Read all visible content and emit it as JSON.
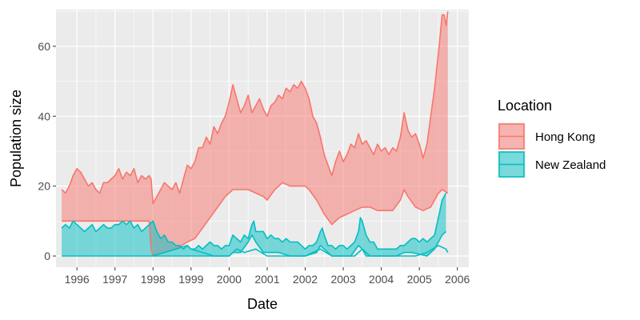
{
  "chart_data": {
    "type": "area",
    "xlabel": "Date",
    "ylabel": "Population size",
    "x_ticks": [
      "1996",
      "1997",
      "1998",
      "1999",
      "2000",
      "2001",
      "2002",
      "2003",
      "2004",
      "2005",
      "2006"
    ],
    "y_ticks": [
      0,
      20,
      40,
      60
    ],
    "xlim": [
      1995.45,
      2006.3
    ],
    "ylim": [
      -3.2,
      70.5
    ],
    "grid": true,
    "legend": {
      "title": "Location",
      "position": "right"
    },
    "series": [
      {
        "name": "Hong Kong",
        "color": "#F8766D",
        "fill": "rgba(248,118,109,0.5)",
        "upper": [
          [
            1995.6,
            19
          ],
          [
            1995.7,
            18
          ],
          [
            1995.8,
            20
          ],
          [
            1995.9,
            23
          ],
          [
            1996.0,
            25
          ],
          [
            1996.1,
            24
          ],
          [
            1996.2,
            22
          ],
          [
            1996.3,
            20
          ],
          [
            1996.4,
            21
          ],
          [
            1996.5,
            19
          ],
          [
            1996.6,
            18
          ],
          [
            1996.7,
            21
          ],
          [
            1996.8,
            21
          ],
          [
            1996.9,
            22
          ],
          [
            1997.0,
            23
          ],
          [
            1997.1,
            25
          ],
          [
            1997.2,
            22
          ],
          [
            1997.3,
            24
          ],
          [
            1997.4,
            23
          ],
          [
            1997.5,
            25
          ],
          [
            1997.6,
            21
          ],
          [
            1997.7,
            23
          ],
          [
            1997.8,
            22
          ],
          [
            1997.9,
            23
          ],
          [
            1997.95,
            22
          ],
          [
            1998.0,
            15
          ],
          [
            1998.1,
            17
          ],
          [
            1998.2,
            19
          ],
          [
            1998.3,
            21
          ],
          [
            1998.4,
            20
          ],
          [
            1998.5,
            19
          ],
          [
            1998.6,
            21
          ],
          [
            1998.7,
            18
          ],
          [
            1998.8,
            22
          ],
          [
            1998.9,
            26
          ],
          [
            1999.0,
            25
          ],
          [
            1999.1,
            27
          ],
          [
            1999.2,
            31
          ],
          [
            1999.3,
            31
          ],
          [
            1999.4,
            34
          ],
          [
            1999.5,
            32
          ],
          [
            1999.6,
            37
          ],
          [
            1999.7,
            35
          ],
          [
            1999.8,
            38
          ],
          [
            1999.9,
            40
          ],
          [
            2000.0,
            44
          ],
          [
            2000.1,
            49
          ],
          [
            2000.2,
            45
          ],
          [
            2000.3,
            41
          ],
          [
            2000.4,
            43
          ],
          [
            2000.5,
            46
          ],
          [
            2000.6,
            41
          ],
          [
            2000.7,
            43
          ],
          [
            2000.8,
            45
          ],
          [
            2000.9,
            42
          ],
          [
            2001.0,
            40
          ],
          [
            2001.1,
            43
          ],
          [
            2001.2,
            44
          ],
          [
            2001.3,
            46
          ],
          [
            2001.4,
            45
          ],
          [
            2001.5,
            48
          ],
          [
            2001.6,
            47
          ],
          [
            2001.7,
            49
          ],
          [
            2001.8,
            48
          ],
          [
            2001.9,
            50
          ],
          [
            2002.0,
            48
          ],
          [
            2002.1,
            45
          ],
          [
            2002.2,
            40
          ],
          [
            2002.3,
            38
          ],
          [
            2002.4,
            34
          ],
          [
            2002.5,
            29
          ],
          [
            2002.6,
            26
          ],
          [
            2002.7,
            23
          ],
          [
            2002.8,
            27
          ],
          [
            2002.9,
            30
          ],
          [
            2003.0,
            27
          ],
          [
            2003.1,
            29
          ],
          [
            2003.2,
            32
          ],
          [
            2003.3,
            31
          ],
          [
            2003.4,
            35
          ],
          [
            2003.5,
            32
          ],
          [
            2003.6,
            33
          ],
          [
            2003.7,
            31
          ],
          [
            2003.8,
            29
          ],
          [
            2003.9,
            32
          ],
          [
            2004.0,
            30
          ],
          [
            2004.1,
            31
          ],
          [
            2004.2,
            29
          ],
          [
            2004.3,
            31
          ],
          [
            2004.4,
            30
          ],
          [
            2004.5,
            34
          ],
          [
            2004.6,
            41
          ],
          [
            2004.7,
            36
          ],
          [
            2004.8,
            34
          ],
          [
            2004.9,
            35
          ],
          [
            2005.0,
            32
          ],
          [
            2005.1,
            28
          ],
          [
            2005.2,
            32
          ],
          [
            2005.3,
            40
          ],
          [
            2005.4,
            48
          ],
          [
            2005.5,
            58
          ],
          [
            2005.6,
            69
          ],
          [
            2005.65,
            69
          ],
          [
            2005.7,
            66
          ],
          [
            2005.75,
            70
          ]
        ],
        "lower": [
          [
            1995.6,
            10
          ],
          [
            1996.0,
            10
          ],
          [
            1997.0,
            10
          ],
          [
            1997.9,
            10
          ],
          [
            1997.95,
            2
          ],
          [
            1998.0,
            0
          ],
          [
            1998.3,
            1
          ],
          [
            1998.6,
            2
          ],
          [
            1998.9,
            4
          ],
          [
            1999.1,
            5
          ],
          [
            1999.3,
            8
          ],
          [
            1999.5,
            11
          ],
          [
            1999.7,
            14
          ],
          [
            1999.9,
            17
          ],
          [
            2000.1,
            19
          ],
          [
            2000.3,
            19
          ],
          [
            2000.5,
            19
          ],
          [
            2000.7,
            18
          ],
          [
            2000.9,
            17
          ],
          [
            2001.0,
            16
          ],
          [
            2001.2,
            19
          ],
          [
            2001.4,
            21
          ],
          [
            2001.6,
            20
          ],
          [
            2001.8,
            20
          ],
          [
            2002.0,
            20
          ],
          [
            2002.1,
            19
          ],
          [
            2002.3,
            16
          ],
          [
            2002.5,
            12
          ],
          [
            2002.7,
            9
          ],
          [
            2002.9,
            11
          ],
          [
            2003.1,
            12
          ],
          [
            2003.3,
            13
          ],
          [
            2003.5,
            14
          ],
          [
            2003.7,
            14
          ],
          [
            2003.9,
            13
          ],
          [
            2004.1,
            13
          ],
          [
            2004.3,
            13
          ],
          [
            2004.5,
            16
          ],
          [
            2004.6,
            19
          ],
          [
            2004.7,
            17
          ],
          [
            2004.9,
            14
          ],
          [
            2005.1,
            13
          ],
          [
            2005.3,
            14
          ],
          [
            2005.5,
            18
          ],
          [
            2005.6,
            19
          ],
          [
            2005.75,
            18
          ]
        ]
      },
      {
        "name": "New Zealand",
        "color": "#00BFC4",
        "fill": "rgba(0,191,196,0.5)",
        "upper": [
          [
            1995.6,
            8
          ],
          [
            1995.7,
            9
          ],
          [
            1995.8,
            8
          ],
          [
            1995.9,
            10
          ],
          [
            1996.0,
            9
          ],
          [
            1996.1,
            8
          ],
          [
            1996.2,
            7
          ],
          [
            1996.3,
            8
          ],
          [
            1996.4,
            9
          ],
          [
            1996.5,
            7
          ],
          [
            1996.6,
            8
          ],
          [
            1996.7,
            9
          ],
          [
            1996.8,
            8
          ],
          [
            1996.9,
            8
          ],
          [
            1997.0,
            9
          ],
          [
            1997.1,
            9
          ],
          [
            1997.2,
            10
          ],
          [
            1997.3,
            9
          ],
          [
            1997.4,
            10
          ],
          [
            1997.5,
            8
          ],
          [
            1997.6,
            9
          ],
          [
            1997.7,
            7
          ],
          [
            1997.8,
            8
          ],
          [
            1997.9,
            9
          ],
          [
            1998.0,
            10
          ],
          [
            1998.1,
            7
          ],
          [
            1998.2,
            5
          ],
          [
            1998.3,
            6
          ],
          [
            1998.4,
            4
          ],
          [
            1998.5,
            4
          ],
          [
            1998.6,
            3
          ],
          [
            1998.7,
            3
          ],
          [
            1998.8,
            2
          ],
          [
            1998.9,
            3
          ],
          [
            1999.0,
            2
          ],
          [
            1999.1,
            2
          ],
          [
            1999.2,
            3
          ],
          [
            1999.3,
            2
          ],
          [
            1999.4,
            3
          ],
          [
            1999.5,
            4
          ],
          [
            1999.6,
            3
          ],
          [
            1999.7,
            3
          ],
          [
            1999.8,
            2
          ],
          [
            1999.9,
            3
          ],
          [
            2000.0,
            3
          ],
          [
            2000.1,
            6
          ],
          [
            2000.2,
            5
          ],
          [
            2000.3,
            4
          ],
          [
            2000.4,
            6
          ],
          [
            2000.5,
            5
          ],
          [
            2000.6,
            9
          ],
          [
            2000.65,
            10
          ],
          [
            2000.7,
            7
          ],
          [
            2000.8,
            7
          ],
          [
            2000.9,
            7
          ],
          [
            2001.0,
            5
          ],
          [
            2001.1,
            6
          ],
          [
            2001.2,
            5
          ],
          [
            2001.3,
            5
          ],
          [
            2001.4,
            4
          ],
          [
            2001.5,
            5
          ],
          [
            2001.6,
            4
          ],
          [
            2001.7,
            4
          ],
          [
            2001.8,
            4
          ],
          [
            2001.9,
            3
          ],
          [
            2002.0,
            2
          ],
          [
            2002.1,
            3
          ],
          [
            2002.2,
            3
          ],
          [
            2002.3,
            4
          ],
          [
            2002.4,
            7
          ],
          [
            2002.45,
            8
          ],
          [
            2002.5,
            6
          ],
          [
            2002.6,
            3
          ],
          [
            2002.7,
            3
          ],
          [
            2002.8,
            2
          ],
          [
            2002.9,
            3
          ],
          [
            2003.0,
            3
          ],
          [
            2003.1,
            2
          ],
          [
            2003.2,
            3
          ],
          [
            2003.3,
            4
          ],
          [
            2003.4,
            7
          ],
          [
            2003.45,
            11
          ],
          [
            2003.5,
            10
          ],
          [
            2003.6,
            6
          ],
          [
            2003.7,
            4
          ],
          [
            2003.8,
            4
          ],
          [
            2003.9,
            2
          ],
          [
            2004.0,
            2
          ],
          [
            2004.1,
            2
          ],
          [
            2004.2,
            2
          ],
          [
            2004.3,
            2
          ],
          [
            2004.4,
            2
          ],
          [
            2004.5,
            3
          ],
          [
            2004.6,
            3
          ],
          [
            2004.7,
            4
          ],
          [
            2004.8,
            5
          ],
          [
            2004.9,
            5
          ],
          [
            2005.0,
            4
          ],
          [
            2005.1,
            5
          ],
          [
            2005.2,
            4
          ],
          [
            2005.3,
            5
          ],
          [
            2005.4,
            6
          ],
          [
            2005.5,
            11
          ],
          [
            2005.6,
            16
          ],
          [
            2005.7,
            18
          ]
        ],
        "lower": [
          [
            1995.6,
            0
          ],
          [
            1997.9,
            0
          ],
          [
            2000.0,
            0
          ],
          [
            2000.1,
            1
          ],
          [
            2000.3,
            1
          ],
          [
            2000.5,
            4
          ],
          [
            2000.6,
            6
          ],
          [
            2000.7,
            4
          ],
          [
            2000.9,
            1
          ],
          [
            2001.3,
            1
          ],
          [
            2001.6,
            0
          ],
          [
            2002.0,
            0
          ],
          [
            2002.3,
            1
          ],
          [
            2002.4,
            3
          ],
          [
            2002.5,
            2
          ],
          [
            2002.7,
            0
          ],
          [
            2003.2,
            0
          ],
          [
            2003.4,
            3
          ],
          [
            2003.5,
            2
          ],
          [
            2003.6,
            0
          ],
          [
            2004.0,
            0
          ],
          [
            2004.4,
            0
          ],
          [
            2004.6,
            1
          ],
          [
            2004.8,
            1
          ],
          [
            2005.2,
            0
          ],
          [
            2005.4,
            2
          ],
          [
            2005.5,
            4
          ],
          [
            2005.6,
            6
          ],
          [
            2005.7,
            7
          ]
        ],
        "extra_line": [
          [
            1997.95,
            0
          ],
          [
            1998.3,
            1
          ],
          [
            1998.6,
            2
          ],
          [
            1998.9,
            3
          ],
          [
            1999.0,
            2
          ],
          [
            1999.3,
            1
          ],
          [
            1999.6,
            0
          ],
          [
            2000.0,
            0
          ],
          [
            2000.2,
            2
          ],
          [
            2000.4,
            1
          ],
          [
            2000.7,
            2
          ],
          [
            2001.0,
            0
          ],
          [
            2002.0,
            0
          ],
          [
            2002.4,
            2
          ],
          [
            2002.7,
            0
          ],
          [
            2003.3,
            0
          ],
          [
            2003.5,
            2
          ],
          [
            2003.7,
            0
          ],
          [
            2004.5,
            0
          ],
          [
            2004.9,
            0
          ],
          [
            2005.2,
            1
          ],
          [
            2005.5,
            3
          ],
          [
            2005.7,
            2
          ],
          [
            2005.75,
            1
          ]
        ]
      }
    ]
  }
}
